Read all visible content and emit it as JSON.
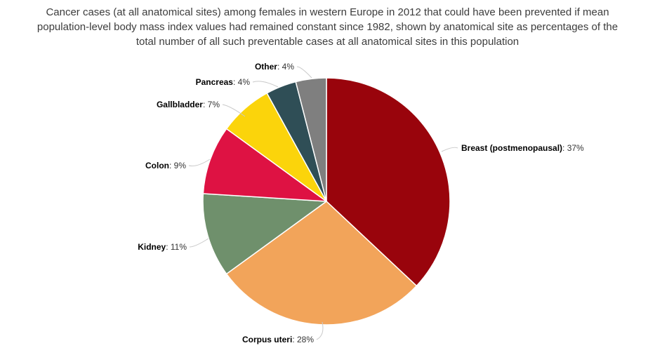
{
  "title": {
    "lines": [
      "Cancer cases (at all anatomical sites) among females in western Europe in 2012 that could have been prevented if mean",
      "population-level body mass index values had remained constant since 1982, shown by anatomical site as percentages of the",
      "total number of all such preventable cases at all anatomical sites in this population"
    ]
  },
  "chart_data": {
    "type": "pie",
    "title": "Cancer cases (at all anatomical sites) among females in western Europe in 2012 that could have been prevented if mean population-level body mass index values had remained constant since 1982, shown by anatomical site as percentages of the total number of all such preventable cases at all anatomical sites in this population",
    "unit": "%",
    "start_angle_deg": 0,
    "direction": "clockwise",
    "legend": "none",
    "label_format": "{label}: {value}%",
    "slices": [
      {
        "label": "Breast (postmenopausal)",
        "value": 37,
        "color": "#99040C"
      },
      {
        "label": "Corpus uteri",
        "value": 28,
        "color": "#F2A45A"
      },
      {
        "label": "Kidney",
        "value": 11,
        "color": "#6F906C"
      },
      {
        "label": "Colon",
        "value": 9,
        "color": "#DE1243"
      },
      {
        "label": "Gallbladder",
        "value": 7,
        "color": "#FBD40B"
      },
      {
        "label": "Pancreas",
        "value": 4,
        "color": "#2F4E56"
      },
      {
        "label": "Other",
        "value": 4,
        "color": "#7F7F7F"
      }
    ]
  },
  "colors": {
    "background": "#FFFFFF",
    "title_text": "#3C3C3C",
    "label_name_text": "#000000",
    "label_value_text": "#333333",
    "connector_line": "#C9C9C9",
    "slice_border": "#FFFFFF"
  }
}
